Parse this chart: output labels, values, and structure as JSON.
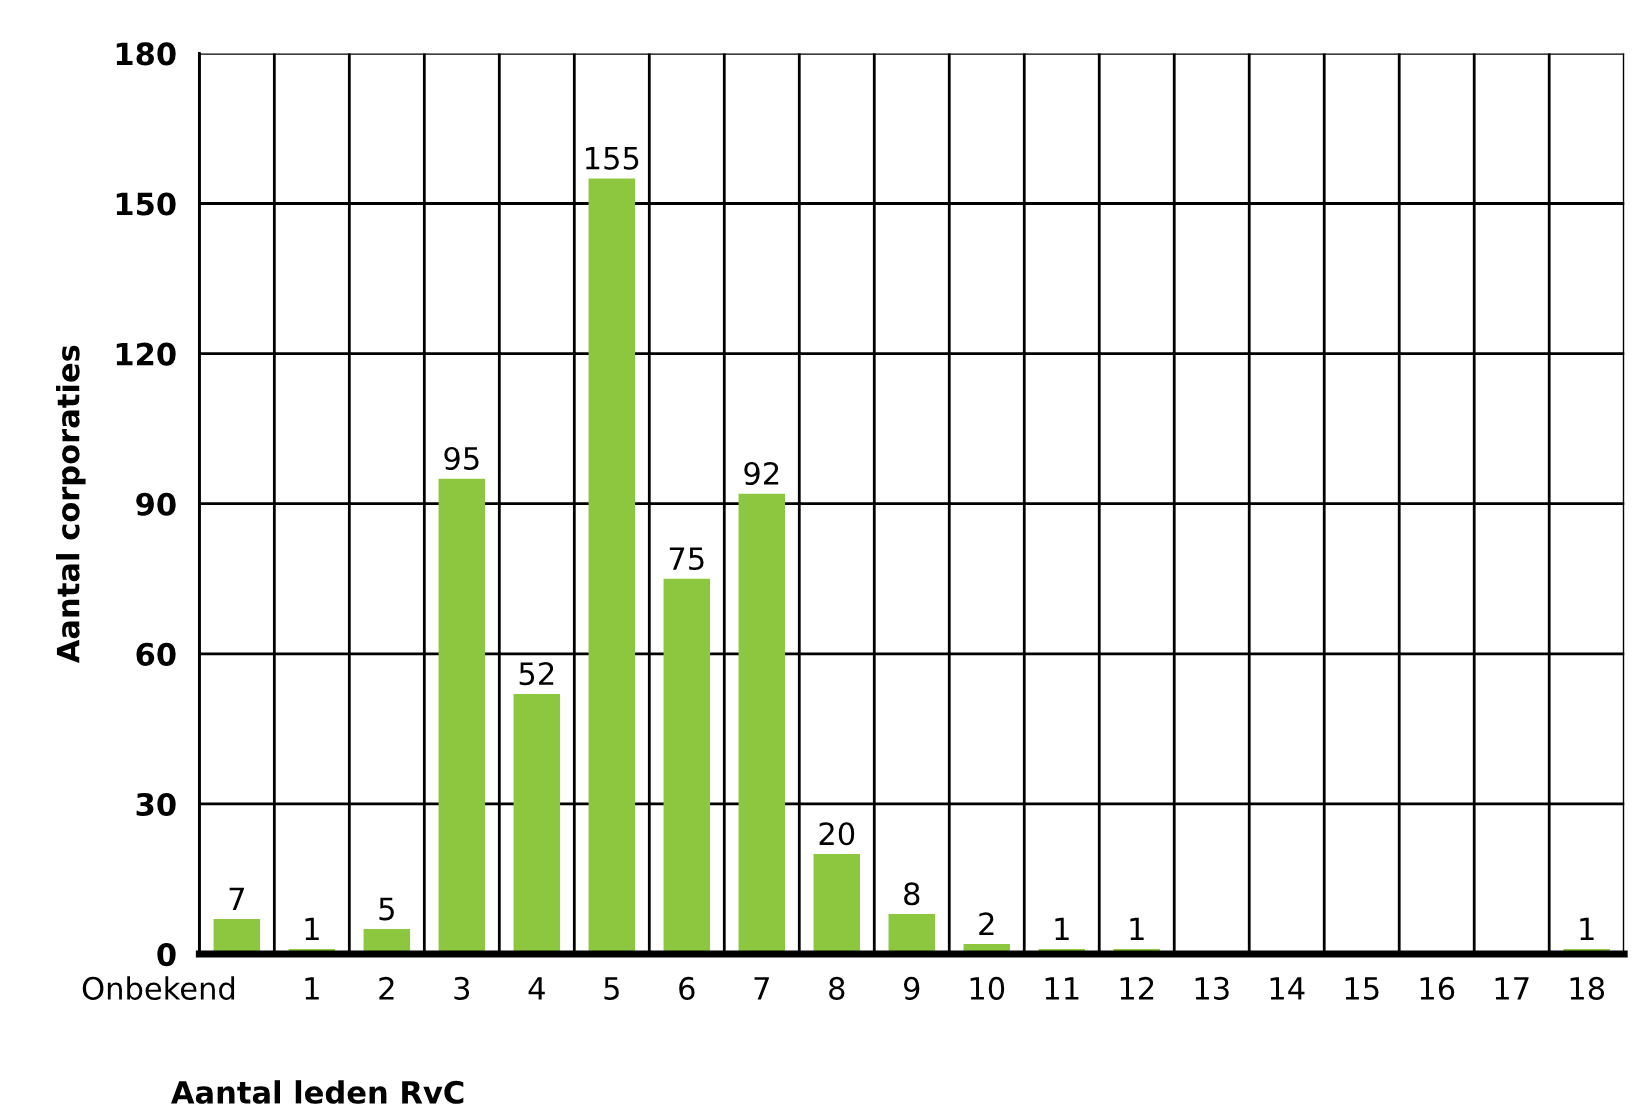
{
  "chart_data": {
    "type": "bar",
    "xlabel": "Aantal leden RvC",
    "ylabel": "Aantal corporaties",
    "categories": [
      "Onbekend",
      "1",
      "2",
      "3",
      "4",
      "5",
      "6",
      "7",
      "8",
      "9",
      "10",
      "11",
      "12",
      "13",
      "14",
      "15",
      "16",
      "17",
      "18"
    ],
    "values": [
      7,
      1,
      5,
      95,
      52,
      155,
      75,
      92,
      20,
      8,
      2,
      1,
      1,
      null,
      null,
      null,
      null,
      null,
      1
    ],
    "color": "#8dc63f",
    "ylim": [
      0,
      180
    ],
    "yticks": [
      0,
      30,
      60,
      90,
      120,
      150,
      180
    ],
    "grid": true,
    "data_labels": true
  }
}
